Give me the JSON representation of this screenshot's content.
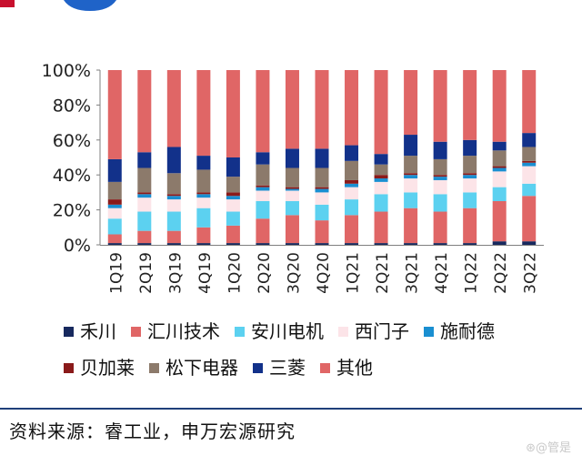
{
  "chart_data": {
    "type": "bar",
    "stacked": true,
    "normalized": true,
    "categories": [
      "1Q19",
      "2Q19",
      "3Q19",
      "4Q19",
      "1Q20",
      "2Q20",
      "3Q20",
      "4Q20",
      "1Q21",
      "2Q21",
      "3Q21",
      "4Q21",
      "1Q22",
      "2Q22",
      "3Q22"
    ],
    "ylim": [
      0,
      100
    ],
    "yticks": [
      "0%",
      "20%",
      "40%",
      "60%",
      "80%",
      "100%"
    ],
    "series": [
      {
        "name": "禾川",
        "color": "#17295e",
        "values": [
          1,
          1,
          1,
          1,
          1,
          1,
          1,
          1,
          1,
          1,
          1,
          1,
          1,
          2,
          2
        ]
      },
      {
        "name": "汇川技术",
        "color": "#e06666",
        "values": [
          5,
          7,
          7,
          9,
          10,
          14,
          16,
          13,
          16,
          18,
          20,
          18,
          20,
          23,
          26
        ]
      },
      {
        "name": "安川电机",
        "color": "#5cd1f0",
        "values": [
          9,
          11,
          11,
          11,
          8,
          10,
          8,
          9,
          9,
          10,
          9,
          10,
          9,
          8,
          7
        ]
      },
      {
        "name": "西门子",
        "color": "#fce4e8",
        "values": [
          6,
          8,
          7,
          6,
          7,
          6,
          6,
          7,
          7,
          7,
          8,
          8,
          8,
          9,
          10
        ]
      },
      {
        "name": "施耐德",
        "color": "#1a8fd1",
        "values": [
          2,
          2,
          2,
          2,
          2,
          2,
          1,
          2,
          2,
          2,
          2,
          2,
          2,
          2,
          2
        ]
      },
      {
        "name": "贝加莱",
        "color": "#8a1a1a",
        "values": [
          3,
          1,
          1,
          1,
          2,
          1,
          1,
          1,
          2,
          2,
          1,
          1,
          1,
          1,
          1
        ]
      },
      {
        "name": "松下电器",
        "color": "#8c7a6b",
        "values": [
          10,
          14,
          12,
          13,
          9,
          12,
          11,
          11,
          11,
          6,
          10,
          9,
          10,
          9,
          8
        ]
      },
      {
        "name": "三菱",
        "color": "#12318a",
        "values": [
          13,
          9,
          15,
          8,
          11,
          7,
          11,
          11,
          9,
          6,
          12,
          10,
          9,
          5,
          8
        ]
      },
      {
        "name": "其他",
        "color": "#e06666",
        "values": [
          51,
          47,
          44,
          49,
          50,
          47,
          45,
          45,
          43,
          48,
          37,
          41,
          40,
          41,
          36
        ]
      }
    ],
    "title": "",
    "xlabel": "",
    "ylabel": "",
    "grid": false,
    "legend_position": "bottom"
  },
  "source_text": "资料来源：睿工业，申万宏源研究",
  "watermark_text": "⊛@管是"
}
